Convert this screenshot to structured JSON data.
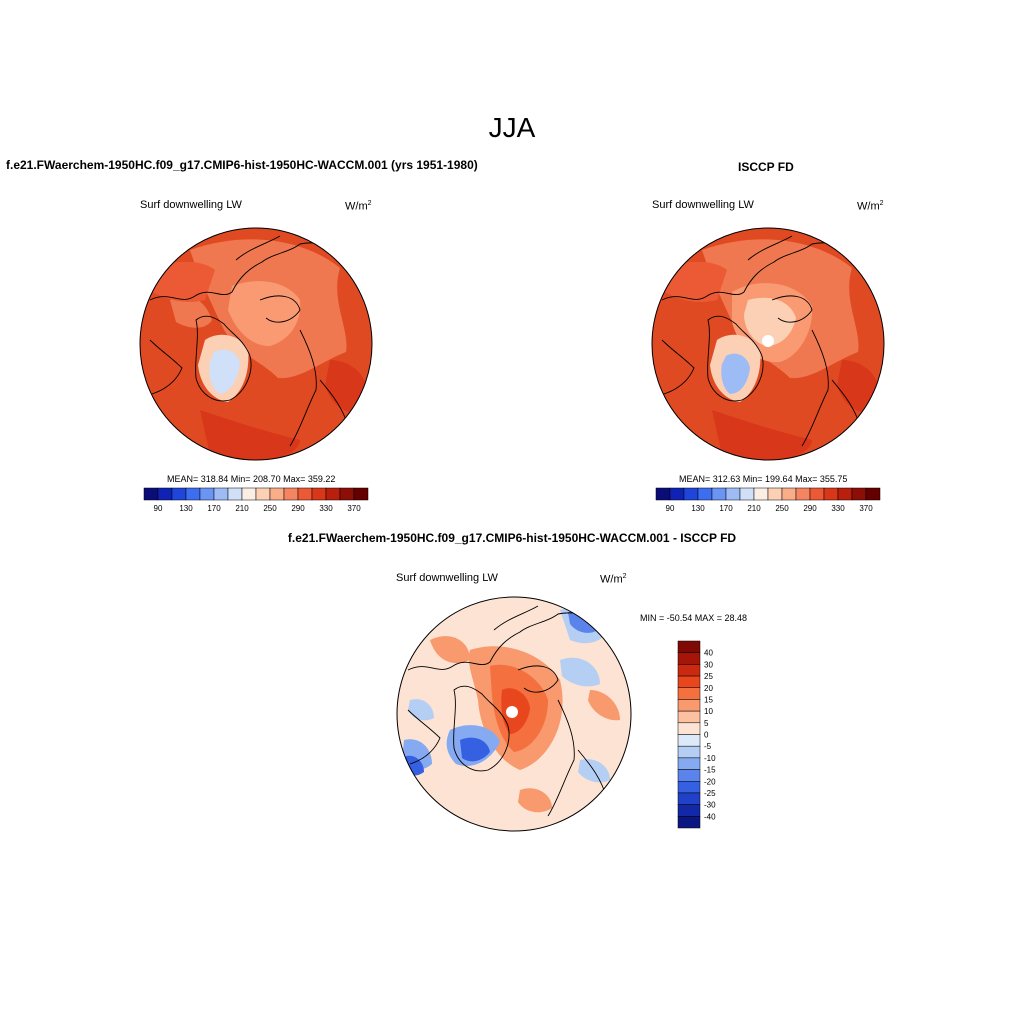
{
  "title": "JJA",
  "panels": {
    "left": {
      "title": "f.e21.FWaerchem-1950HC.f09_g17.CMIP6-hist-1950HC-WACCM.001 (yrs 1951-1980)",
      "variable": "Surf downwelling LW",
      "units_base": "W/m",
      "units_exp": "2",
      "stats": "MEAN= 318.84  Min= 208.70  Max= 359.22"
    },
    "right": {
      "title": "ISCCP FD",
      "variable": "Surf downwelling LW",
      "units_base": "W/m",
      "units_exp": "2",
      "stats": "MEAN= 312.63  Min= 199.64  Max= 355.75"
    },
    "diff": {
      "title": "f.e21.FWaerchem-1950HC.f09_g17.CMIP6-hist-1950HC-WACCM.001 - ISCCP FD",
      "variable": "Surf downwelling LW",
      "units_base": "W/m",
      "units_exp": "2",
      "stats": "MIN = -50.54 MAX =  28.48"
    }
  },
  "chart_data": [
    {
      "type": "heatmap",
      "title": "f.e21.FWaerchem-1950HC.f09_g17.CMIP6-hist-1950HC-WACCM.001 (yrs 1951-1980)",
      "variable": "Surf downwelling LW",
      "units": "W/m2",
      "projection": "north polar stereographic",
      "mean": 318.84,
      "min": 208.7,
      "max": 359.22,
      "colorbar": {
        "orientation": "horizontal",
        "levels": [
          90,
          110,
          130,
          150,
          170,
          190,
          210,
          230,
          250,
          270,
          290,
          310,
          330,
          350,
          370
        ],
        "tick_labels": [
          "90",
          "130",
          "170",
          "210",
          "250",
          "290",
          "330",
          "370"
        ],
        "colors": [
          "#0a0d78",
          "#0f22b4",
          "#1f45db",
          "#3d6ef0",
          "#6a95f2",
          "#9dbcf5",
          "#cfe0f8",
          "#fbeee4",
          "#fcd0b5",
          "#f9ad88",
          "#f58560",
          "#ec5a35",
          "#d8371a",
          "#ba1e0c",
          "#8c0e06",
          "#640000"
        ]
      }
    },
    {
      "type": "heatmap",
      "title": "ISCCP FD",
      "variable": "Surf downwelling LW",
      "units": "W/m2",
      "projection": "north polar stereographic",
      "mean": 312.63,
      "min": 199.64,
      "max": 355.75,
      "colorbar": {
        "orientation": "horizontal",
        "levels": [
          90,
          110,
          130,
          150,
          170,
          190,
          210,
          230,
          250,
          270,
          290,
          310,
          330,
          350,
          370
        ],
        "tick_labels": [
          "90",
          "130",
          "170",
          "210",
          "250",
          "290",
          "330",
          "370"
        ],
        "colors": [
          "#0a0d78",
          "#0f22b4",
          "#1f45db",
          "#3d6ef0",
          "#6a95f2",
          "#9dbcf5",
          "#cfe0f8",
          "#fbeee4",
          "#fcd0b5",
          "#f9ad88",
          "#f58560",
          "#ec5a35",
          "#d8371a",
          "#ba1e0c",
          "#8c0e06",
          "#640000"
        ]
      }
    },
    {
      "type": "heatmap",
      "title": "f.e21.FWaerchem-1950HC.f09_g17.CMIP6-hist-1950HC-WACCM.001 - ISCCP FD",
      "variable": "Surf downwelling LW",
      "units": "W/m2",
      "projection": "north polar stereographic",
      "min": -50.54,
      "max": 28.48,
      "colorbar": {
        "orientation": "vertical",
        "levels": [
          40,
          30,
          25,
          20,
          15,
          10,
          5,
          0,
          -5,
          -10,
          -15,
          -20,
          -25,
          -30,
          -40
        ],
        "tick_labels": [
          "40",
          "30",
          "25",
          "20",
          "15",
          "10",
          "5",
          "0",
          "-5",
          "-10",
          "-15",
          "-20",
          "-25",
          "-30",
          "-40"
        ],
        "colors": [
          "#7f0a05",
          "#a51508",
          "#cc2a10",
          "#e8461c",
          "#f4703e",
          "#f8996e",
          "#fbc1a1",
          "#fde3d3",
          "#dce9f8",
          "#b5cff4",
          "#85aaf1",
          "#5a84ec",
          "#3660e2",
          "#2041c8",
          "#1228a6",
          "#0a1782"
        ]
      }
    }
  ]
}
